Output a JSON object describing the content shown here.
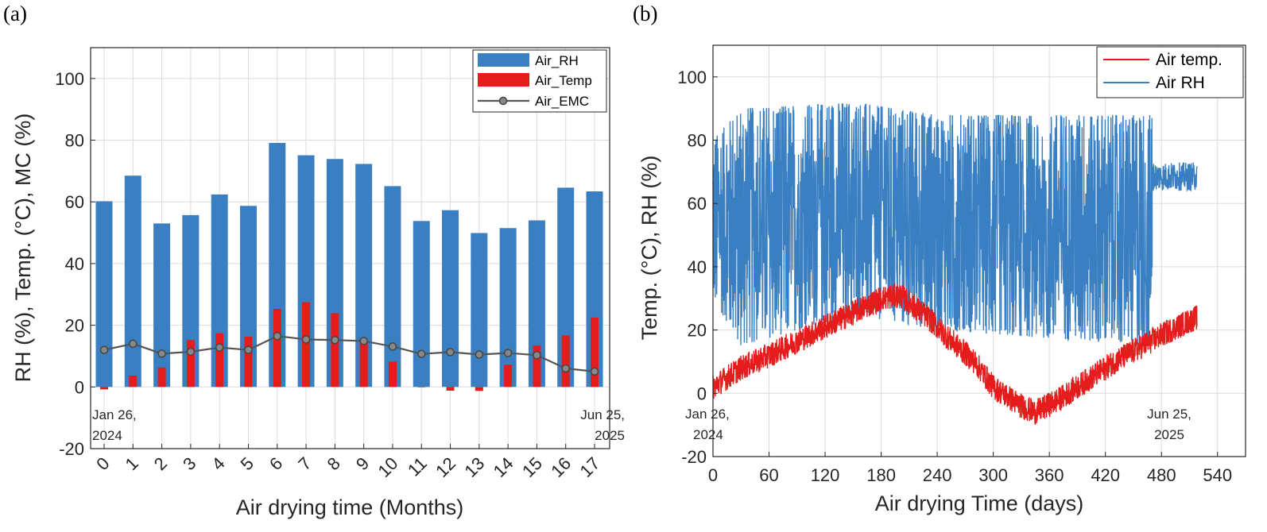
{
  "chart_data": [
    {
      "panel_label": "(a)",
      "type": "bar",
      "xlabel": "Air drying time (Months)",
      "ylabel": "RH (%), Temp. (°C), MC (%)",
      "categories": [
        "0",
        "1",
        "2",
        "3",
        "4",
        "5",
        "6",
        "7",
        "8",
        "9",
        "10",
        "11",
        "12",
        "13",
        "14",
        "15",
        "16",
        "17"
      ],
      "ylim": [
        -20,
        110
      ],
      "yticks": [
        -20,
        0,
        20,
        40,
        60,
        80,
        100
      ],
      "grid": true,
      "legend_position": "top-right",
      "series": [
        {
          "name": "Air_RH",
          "kind": "bar",
          "color": "#3a7fc1",
          "values": [
            60.2,
            68.5,
            53,
            55.7,
            62.4,
            58.7,
            79.1,
            75.1,
            73.9,
            72.3,
            65.1,
            53.8,
            57.3,
            49.9,
            51.5,
            54,
            64.6,
            63.4
          ]
        },
        {
          "name": "Air_Temp",
          "kind": "bar",
          "color": "#e41c1c",
          "values": [
            -0.8,
            3.7,
            6.3,
            15.2,
            17.4,
            16.3,
            25.3,
            27.5,
            23.9,
            14.8,
            8.2,
            0,
            -1.2,
            -1.3,
            7.2,
            13.4,
            16.7,
            22.5
          ]
        },
        {
          "name": "Air_EMC",
          "kind": "line",
          "color": "#555555",
          "values": [
            12,
            14,
            10.8,
            11.4,
            12.8,
            12,
            16.5,
            15.4,
            15.2,
            14.9,
            13.1,
            10.7,
            11.3,
            10.5,
            11,
            10.3,
            6,
            5
          ]
        }
      ],
      "annotations": [
        {
          "category": "0",
          "lines": [
            "Jan 26,",
            "2024"
          ]
        },
        {
          "category": "17",
          "lines": [
            "Jun 25,",
            "2025"
          ]
        }
      ]
    },
    {
      "panel_label": "(b)",
      "type": "line",
      "xlabel": "Air drying Time (days)",
      "ylabel": "Temp. (°C), RH (%)",
      "xlim": [
        0,
        570
      ],
      "ylim": [
        -20,
        110
      ],
      "xticks": [
        0,
        60,
        120,
        180,
        240,
        300,
        360,
        420,
        480,
        540
      ],
      "yticks": [
        -20,
        0,
        20,
        40,
        60,
        80,
        100
      ],
      "grid": true,
      "legend_position": "top-right",
      "x_end": 518,
      "series": [
        {
          "name": "Air temp.",
          "color": "#e41c1c",
          "profile": [
            [
              0,
              2
            ],
            [
              30,
              8
            ],
            [
              60,
              12
            ],
            [
              100,
              18
            ],
            [
              140,
              24
            ],
            [
              180,
              30
            ],
            [
              200,
              31
            ],
            [
              230,
              24
            ],
            [
              250,
              18
            ],
            [
              280,
              10
            ],
            [
              300,
              2
            ],
            [
              330,
              -4
            ],
            [
              345,
              -6
            ],
            [
              370,
              -2
            ],
            [
              400,
              4
            ],
            [
              430,
              10
            ],
            [
              460,
              15
            ],
            [
              490,
              20
            ],
            [
              518,
              24
            ]
          ],
          "noise": 4
        },
        {
          "name": "Air RH",
          "color": "#3a7fc1",
          "profile": [
            [
              0,
              70
            ],
            [
              100,
              65
            ],
            [
              200,
              60
            ],
            [
              300,
              55
            ],
            [
              400,
              55
            ],
            [
              470,
              55
            ]
          ],
          "ranges": [
            [
              0,
              30,
              80
            ],
            [
              30,
              15,
              90
            ],
            [
              150,
              25,
              92
            ],
            [
              240,
              20,
              88
            ],
            [
              470,
              15,
              88
            ]
          ],
          "stable": [
            [
              470,
              518,
              64,
              73
            ]
          ]
        }
      ],
      "annotations": [
        {
          "x": 0,
          "lines": [
            "Jan 26,",
            "2024"
          ]
        },
        {
          "x": 518,
          "lines": [
            "Jun 25,",
            "2025"
          ]
        }
      ]
    }
  ]
}
